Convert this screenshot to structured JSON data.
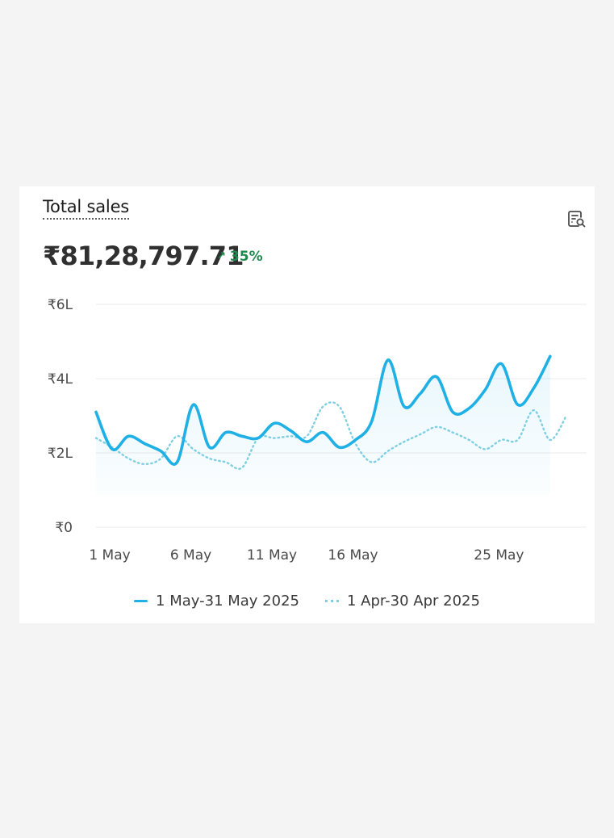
{
  "card": {
    "title": "Total sales",
    "value": "₹81,28,797.71",
    "change": "35%",
    "change_icon": "arrow-up-right-icon",
    "report_icon": "view-report-icon"
  },
  "colors": {
    "current": "#1fb0e6",
    "previous": "#7fcfe3",
    "positive": "#1f8a4c"
  },
  "chart_data": {
    "type": "line",
    "title": "Total sales",
    "xlabel": "",
    "ylabel": "",
    "ylim": [
      0,
      600000
    ],
    "y_ticks": [
      {
        "value": 0,
        "label": "₹0"
      },
      {
        "value": 200000,
        "label": "₹2L"
      },
      {
        "value": 400000,
        "label": "₹4L"
      },
      {
        "value": 600000,
        "label": "₹6L"
      }
    ],
    "x_ticks": [
      {
        "day": 1,
        "label": "1 May"
      },
      {
        "day": 6,
        "label": "6 May"
      },
      {
        "day": 11,
        "label": "11 May"
      },
      {
        "day": 16,
        "label": "16 May"
      },
      {
        "day": 25,
        "label": "25 May"
      }
    ],
    "x": [
      1,
      2,
      3,
      4,
      5,
      6,
      7,
      8,
      9,
      10,
      11,
      12,
      13,
      14,
      15,
      16,
      17,
      18,
      19,
      20,
      21,
      22,
      23,
      24,
      25,
      26,
      27,
      28,
      29,
      30,
      31
    ],
    "grid": true,
    "legend_position": "bottom",
    "series": [
      {
        "name": "1 May–31 May 2025",
        "style": "solid",
        "values": [
          310000,
          210000,
          245000,
          225000,
          205000,
          175000,
          330000,
          215000,
          255000,
          245000,
          240000,
          280000,
          260000,
          230000,
          255000,
          215000,
          235000,
          285000,
          450000,
          325000,
          360000,
          405000,
          310000,
          320000,
          370000,
          440000,
          330000,
          375000,
          460000,
          null,
          null
        ]
      },
      {
        "name": "1 Apr–30 Apr 2025",
        "style": "dotted",
        "values": [
          240000,
          215000,
          185000,
          170000,
          185000,
          245000,
          210000,
          185000,
          175000,
          160000,
          240000,
          240000,
          245000,
          245000,
          325000,
          325000,
          225000,
          175000,
          205000,
          230000,
          250000,
          270000,
          255000,
          235000,
          210000,
          235000,
          235000,
          315000,
          235000,
          300000,
          null
        ]
      }
    ]
  },
  "legend": {
    "current": "1 May-31 May 2025",
    "previous": "1 Apr-30 Apr 2025"
  }
}
